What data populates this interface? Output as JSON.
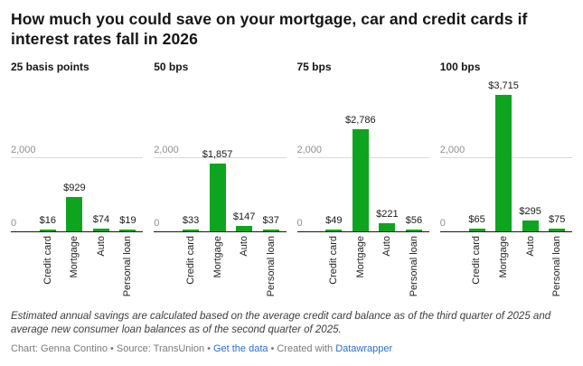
{
  "chart_data": {
    "type": "bar",
    "title": "How much you could save on your mortgage, car and credit cards if interest rates fall in 2026",
    "xlabel": "",
    "ylabel": "",
    "categories": [
      "Credit card",
      "Mortgage",
      "Auto",
      "Personal loan"
    ],
    "panels": [
      {
        "label": "25 basis points",
        "values": [
          16,
          929,
          74,
          19
        ],
        "value_labels": [
          "$16",
          "$929",
          "$74",
          "$19"
        ]
      },
      {
        "label": "50 bps",
        "values": [
          33,
          1857,
          147,
          37
        ],
        "value_labels": [
          "$33",
          "$1,857",
          "$147",
          "$37"
        ]
      },
      {
        "label": "75 bps",
        "values": [
          49,
          2786,
          221,
          56
        ],
        "value_labels": [
          "$49",
          "$2,786",
          "$221",
          "$56"
        ]
      },
      {
        "label": "100 bps",
        "values": [
          65,
          3715,
          295,
          75
        ],
        "value_labels": [
          "$65",
          "$3,715",
          "$295",
          "$75"
        ]
      }
    ],
    "y_ticks": [
      0,
      2000
    ],
    "y_tick_labels": [
      "0",
      "2,000"
    ],
    "ylim": [
      0,
      4000
    ],
    "grid": true,
    "legend_position": "none",
    "bar_color": "#0fa41f"
  },
  "notes": "Estimated annual savings are calculated based on the average credit card balance as of the third quarter of 2025 and average new consumer loan balances as of the second quarter of 2025.",
  "footer": {
    "chart_credit": "Chart: Genna Contino",
    "source_credit": "Source: TransUnion",
    "get_data_label": "Get the data",
    "created_with_label": "Created with",
    "datawrapper_label": "Datawrapper",
    "bullet": "•"
  },
  "colors": {
    "bar": "#0fa41f",
    "link": "#2a6fc9",
    "gridline": "#d9d9d9",
    "axis": "#161616"
  }
}
